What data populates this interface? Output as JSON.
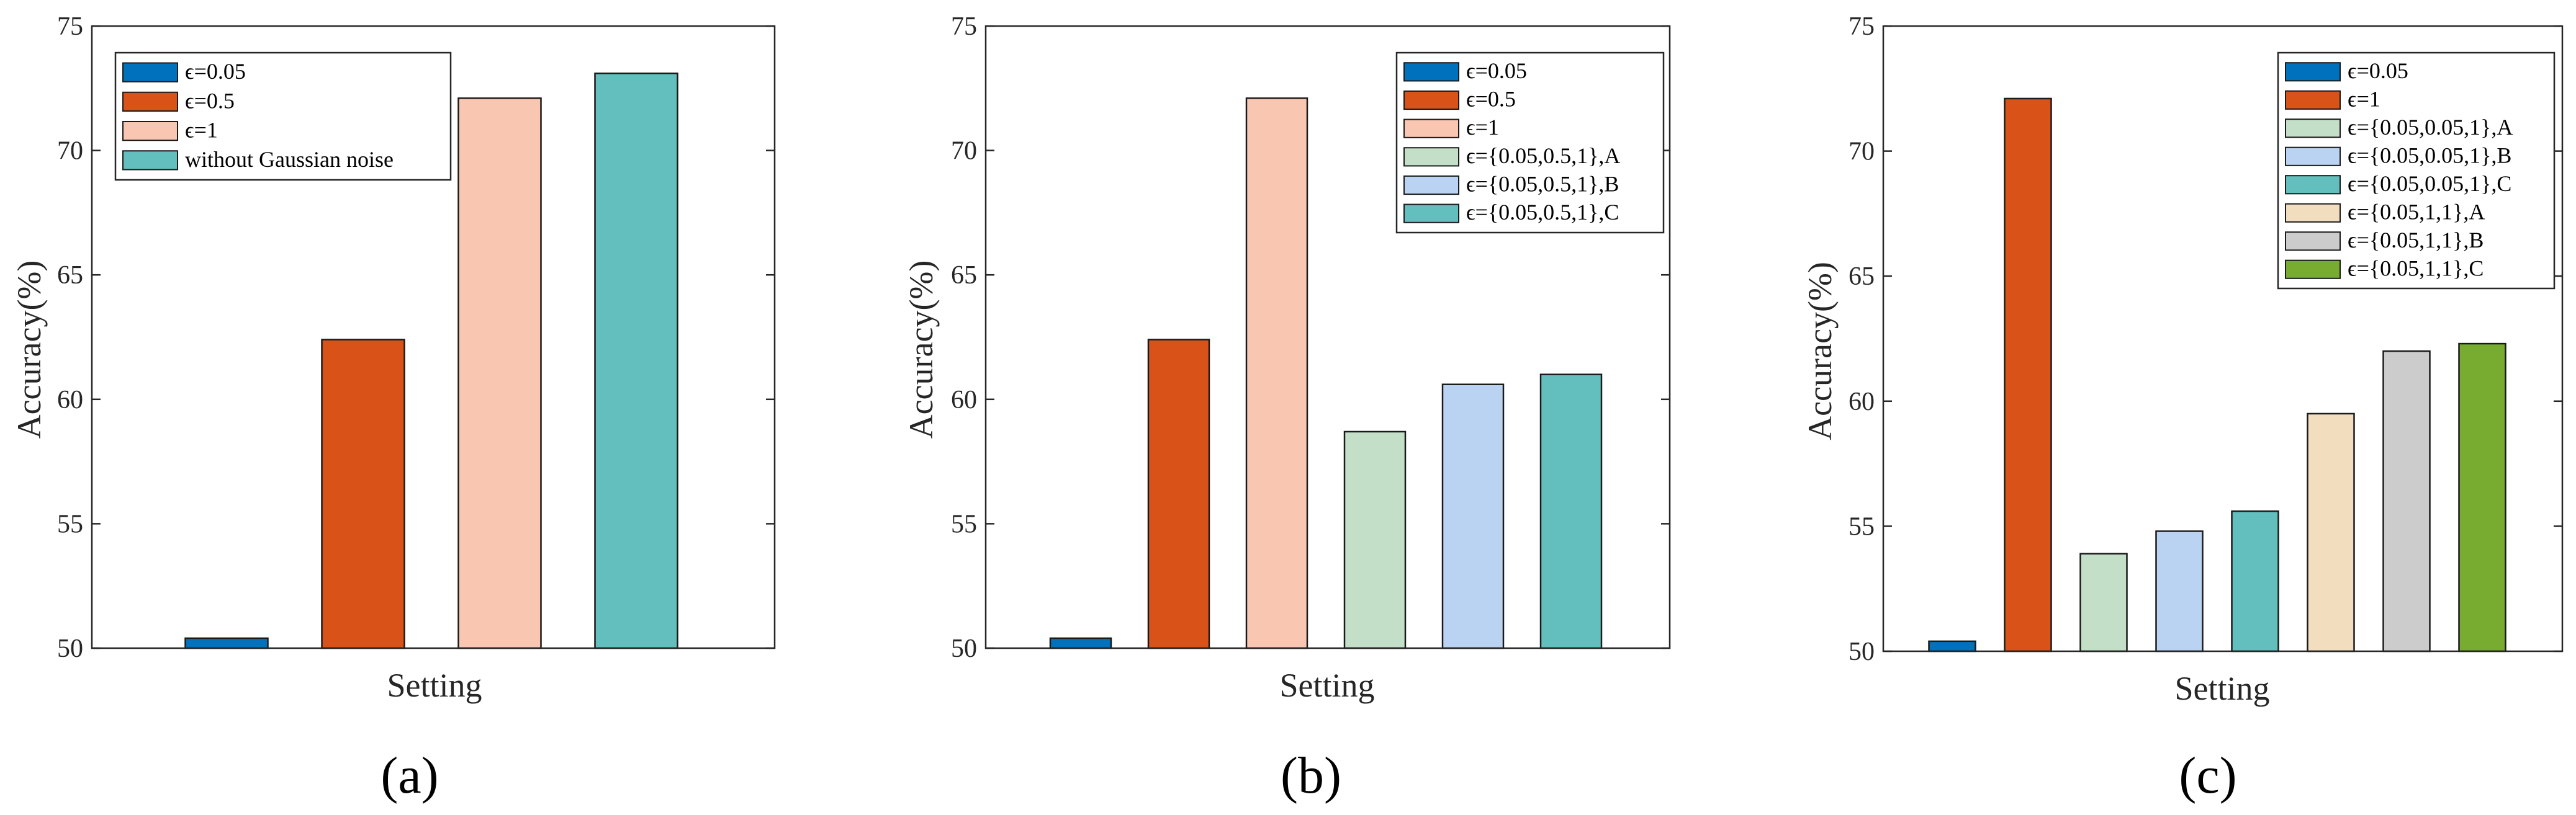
{
  "chart_data": [
    {
      "type": "bar",
      "panel_label": "(a)",
      "xlabel": "Setting",
      "ylabel": "Accuracy(%)",
      "ylim": [
        50,
        75
      ],
      "yticks": [
        50,
        55,
        60,
        65,
        70,
        75
      ],
      "legend_position": "top-left",
      "series": [
        {
          "name": "ϵ=0.05",
          "value": 50.4,
          "color": "#0072BD"
        },
        {
          "name": "ϵ=0.5",
          "value": 62.4,
          "color": "#D95319"
        },
        {
          "name": "ϵ=1",
          "value": 72.1,
          "color": "#F9C6B2"
        },
        {
          "name": "without Gaussian noise",
          "value": 73.1,
          "color": "#62BFBE"
        }
      ]
    },
    {
      "type": "bar",
      "panel_label": "(b)",
      "xlabel": "Setting",
      "ylabel": "Accuracy(%)",
      "ylim": [
        50,
        75
      ],
      "yticks": [
        50,
        55,
        60,
        65,
        70,
        75
      ],
      "legend_position": "top-right",
      "series": [
        {
          "name": "ϵ=0.05",
          "value": 50.4,
          "color": "#0072BD"
        },
        {
          "name": "ϵ=0.5",
          "value": 62.4,
          "color": "#D95319"
        },
        {
          "name": "ϵ=1",
          "value": 72.1,
          "color": "#F9C6B2"
        },
        {
          "name": "ϵ={0.05,0.5,1},A",
          "value": 58.7,
          "color": "#C3DFC8"
        },
        {
          "name": "ϵ={0.05,0.5,1},B",
          "value": 60.6,
          "color": "#BAD3F2"
        },
        {
          "name": "ϵ={0.05,0.5,1},C",
          "value": 61.0,
          "color": "#62BFBE"
        }
      ]
    },
    {
      "type": "bar",
      "panel_label": "(c)",
      "xlabel": "Setting",
      "ylabel": "Accuracy(%)",
      "ylim": [
        50,
        75
      ],
      "yticks": [
        50,
        55,
        60,
        65,
        70,
        75
      ],
      "legend_position": "top-right",
      "series": [
        {
          "name": "ϵ=0.05",
          "value": 50.4,
          "color": "#0072BD"
        },
        {
          "name": "ϵ=1",
          "value": 72.1,
          "color": "#D95319"
        },
        {
          "name": "ϵ={0.05,0.05,1},A",
          "value": 53.9,
          "color": "#C3DFC8"
        },
        {
          "name": "ϵ={0.05,0.05,1},B",
          "value": 54.8,
          "color": "#BAD3F2"
        },
        {
          "name": "ϵ={0.05,0.05,1},C",
          "value": 55.6,
          "color": "#62BFBE"
        },
        {
          "name": "ϵ={0.05,1,1},A",
          "value": 59.5,
          "color": "#F2DDBF"
        },
        {
          "name": "ϵ={0.05,1,1},B",
          "value": 62.0,
          "color": "#CCCCCC"
        },
        {
          "name": "ϵ={0.05,1,1},C",
          "value": 62.3,
          "color": "#77AC30"
        }
      ]
    }
  ]
}
